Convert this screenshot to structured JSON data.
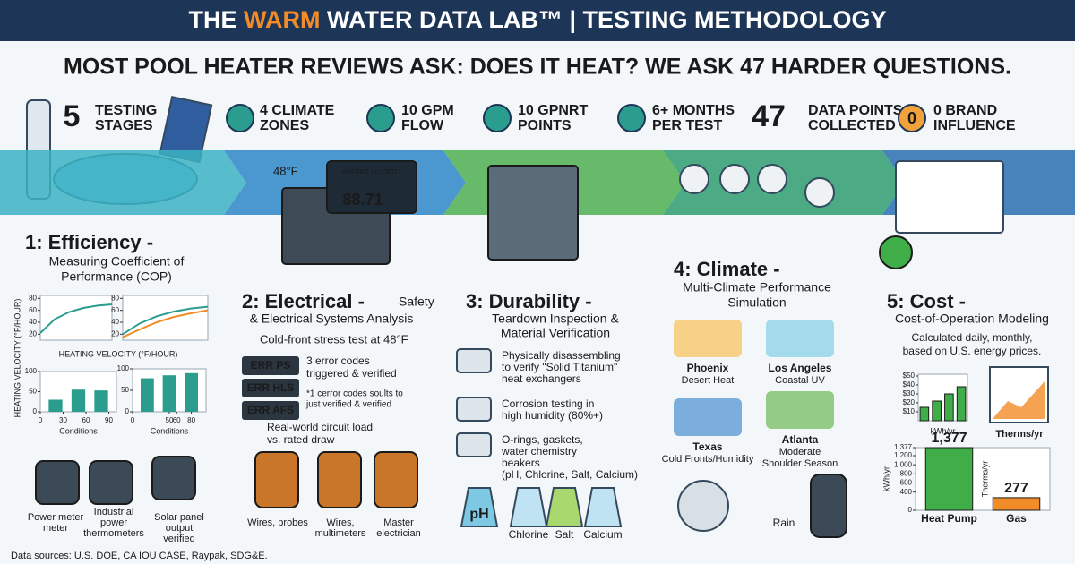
{
  "header": {
    "title_parts": [
      "THE ",
      "WARM",
      " WATER DATA LAB™ | TESTING METHODOLOGY"
    ],
    "subtitle": "MOST POOL HEATER REVIEWS ASK: DOES IT HEAT? WE ASK 47 HARDER QUESTIONS."
  },
  "stats": [
    {
      "number": "5",
      "label": [
        "TESTING",
        "STAGES"
      ]
    },
    {
      "label": [
        "4 CLIMATE",
        "ZONES"
      ]
    },
    {
      "label": [
        "10 GPM",
        "FLOW"
      ]
    },
    {
      "label": [
        "10 GPNRT",
        "POINTS"
      ]
    },
    {
      "label": [
        "6+ MONTHS",
        "PER TEST"
      ]
    },
    {
      "number": "47",
      "label": [
        "DATA POINTS",
        "COLLECTED"
      ]
    },
    {
      "icon_text": "0",
      "label": [
        "0 BRAND",
        "INFLUENCE"
      ]
    }
  ],
  "sections": [
    {
      "heading": "1: Efficiency -",
      "subtitle": [
        "Measuring Coefficient of",
        "Performance (COP)"
      ],
      "y_axis_label": "HEATING VELOCITY (°F/HOUR)",
      "x_axis_label": "HEATING VELOCITY (°F/HOUR)",
      "devices": [
        [
          "Power meter",
          "meter"
        ],
        [
          "Industrial",
          "power",
          "thermometers"
        ],
        [
          "Solar panel",
          "output",
          "verified"
        ]
      ]
    },
    {
      "heading": "2: Electrical -",
      "heading_note": "Safety",
      "subtitle": [
        "& Electrical Systems Analysis"
      ],
      "display_label": "HEATING VELOCITY",
      "display_value": "88.71",
      "temperature": "48°F",
      "stress_test": "Cold-front stress test at 48°F",
      "error_codes": [
        "ERR PS",
        "ERR HLS",
        "ERR AFS"
      ],
      "error_note": [
        "3 error codes",
        "triggered & verified"
      ],
      "error_footnote": [
        "*1 cerror codes soults to",
        "just verified & verified"
      ],
      "load_note": [
        "Real-world circuit load",
        "vs. rated draw"
      ],
      "tools": [
        [
          "Wires, probes"
        ],
        [
          "Wires,",
          "multimeters"
        ],
        [
          "Master",
          "electrician"
        ]
      ]
    },
    {
      "heading": "3: Durability -",
      "subtitle": [
        "Teardown Inspection &",
        "Material Verification"
      ],
      "items": [
        [
          "Physically disassembling",
          "to verify \"Solid Titanium\"",
          "heat exchangers"
        ],
        [
          "Corrosion testing in",
          "high humidity (80%+)"
        ],
        [
          "O-rings, gaskets,",
          "water chemistry",
          "beakers",
          "(pH, Chlorine, Salt, Calcium)"
        ]
      ],
      "beakers": [
        "pH",
        "Chlorine",
        "Salt",
        "Calcium"
      ]
    },
    {
      "heading": "4: Climate -",
      "subtitle": [
        "Multi-Climate Performance",
        "Simulation"
      ],
      "cities": [
        {
          "name": "Phoenix",
          "note": [
            "Desert Heat"
          ]
        },
        {
          "name": "Los Angeles",
          "note": [
            "Coastal UV"
          ]
        },
        {
          "name": "Texas",
          "note": [
            "Cold Fronts/Humidity"
          ]
        },
        {
          "name": "Atlanta",
          "note": [
            "Moderate",
            "Shoulder Season"
          ]
        }
      ],
      "rain": "Rain"
    },
    {
      "heading": "5: Cost -",
      "subtitle": [
        "Cost-of-Operation Modeling"
      ],
      "note": [
        "Calculated daily, monthly,",
        "based on U.S. energy prices."
      ],
      "therms_label": "Therms/yr"
    }
  ],
  "chart_data": [
    {
      "type": "line",
      "categories": [
        null,
        null,
        null,
        null,
        null,
        null
      ],
      "series": [
        {
          "color": "#2a9d8f",
          "values": [
            22,
            45,
            57,
            64,
            68,
            70
          ]
        }
      ],
      "ylim": [
        10,
        85
      ],
      "yticks": [
        20,
        40,
        60,
        80
      ]
    },
    {
      "type": "line",
      "categories": [
        null,
        null,
        null,
        null,
        null,
        null
      ],
      "series": [
        {
          "color": "#2a9d8f",
          "values": [
            20,
            38,
            50,
            58,
            63,
            66
          ]
        },
        {
          "color": "#f28c28",
          "values": [
            15,
            28,
            40,
            49,
            55,
            60
          ]
        }
      ],
      "ylim": [
        10,
        85
      ],
      "yticks": [
        20,
        40,
        60,
        80
      ]
    },
    {
      "type": "bar",
      "x": [
        20,
        50,
        80
      ],
      "values": [
        30,
        55,
        53
      ],
      "color": "#2a9d8f",
      "xlim": [
        0,
        100
      ],
      "xticks": [
        0,
        30,
        60,
        90
      ],
      "ylim": [
        0,
        100
      ],
      "yticks": [
        0,
        50,
        100
      ],
      "x_label": "Conditions"
    },
    {
      "type": "bar",
      "x": [
        20,
        50,
        80
      ],
      "values": [
        78,
        85,
        90
      ],
      "color": "#2a9d8f",
      "xlim": [
        0,
        100
      ],
      "xticks": [
        0,
        50,
        60,
        80
      ],
      "ylim": [
        0,
        100
      ],
      "yticks": [
        0,
        50,
        100
      ],
      "x_label": "Conditions"
    },
    {
      "type": "bar",
      "categories": [
        null,
        null,
        null,
        null
      ],
      "values": [
        15,
        22,
        30,
        38
      ],
      "color": "#3fae49",
      "ylim": [
        0,
        52
      ],
      "yticks": [
        {
          "value": 10,
          "label": "$10"
        },
        {
          "value": 20,
          "label": "$20"
        },
        {
          "value": 30,
          "label": "$30"
        },
        {
          "value": 40,
          "label": "$40"
        },
        {
          "value": 50,
          "label": "$50"
        }
      ],
      "x_label": "kWh/yr"
    },
    {
      "type": "bar",
      "categories": [
        "Heat Pump",
        "Gas"
      ],
      "values": [
        1377,
        277
      ],
      "value_labels": [
        "1,377",
        "277"
      ],
      "colors": [
        "#3fae49",
        "#f28c28"
      ],
      "ylim": [
        0,
        1377
      ],
      "yticks": [
        0,
        400,
        600,
        800,
        {
          "value": 1000,
          "label": "1,000"
        },
        {
          "value": 1200,
          "label": "1,200"
        },
        {
          "value": 1377,
          "label": "1,377"
        }
      ],
      "y_label": "kWh/yr",
      "y2_label": "Therms/yr"
    }
  ],
  "footer": "Data sources: U.S. DOE, CA IOU CASE, Raypak, SDG&E."
}
